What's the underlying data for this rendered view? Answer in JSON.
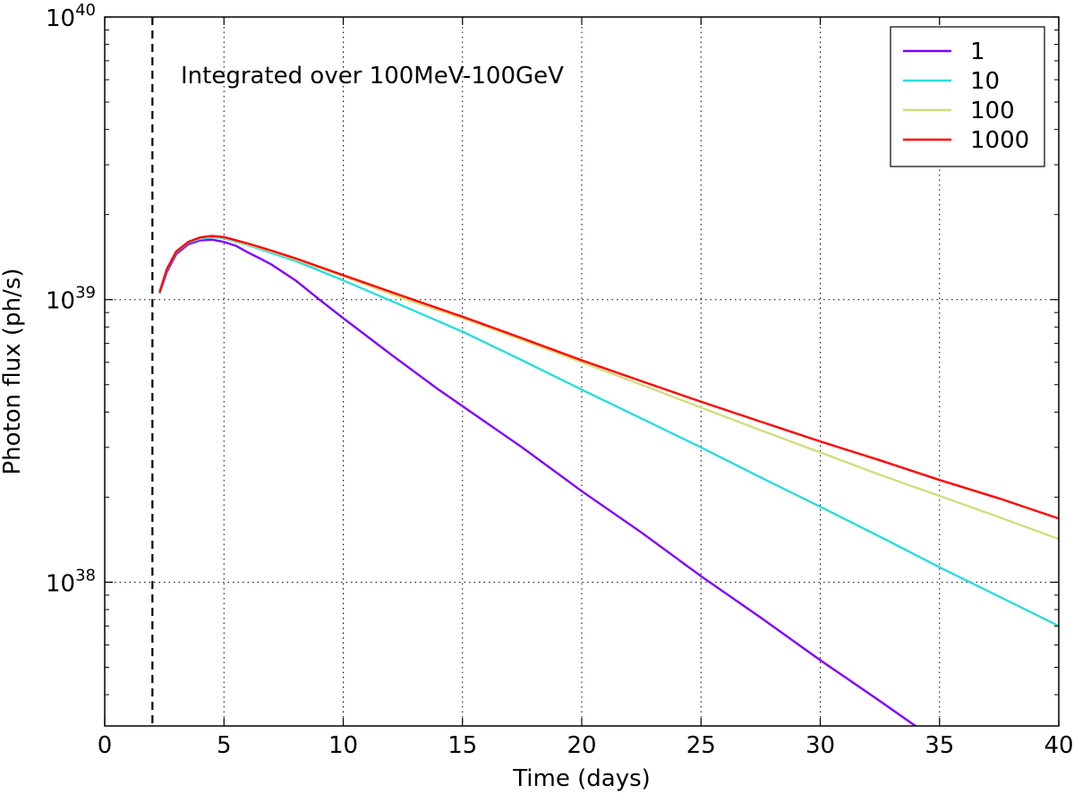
{
  "chart_data": {
    "type": "line",
    "xlabel": "Time (days)",
    "ylabel": "Photon flux (ph/s)",
    "annotation": "Integrated over 100MeV-100GeV",
    "y_scale": "log",
    "xlim": [
      0,
      40
    ],
    "ylim": [
      3.1e+37,
      1e+40
    ],
    "grid": true,
    "legend_position": "top-right",
    "x_ticks": [
      "0",
      "5",
      "10",
      "15",
      "20",
      "25",
      "30",
      "35",
      "40"
    ],
    "y_ticks": [
      {
        "base": "10",
        "exp": "38"
      },
      {
        "base": "10",
        "exp": "39"
      },
      {
        "base": "10",
        "exp": "40"
      }
    ],
    "vertical_marker": {
      "x": 2.0,
      "style": "dashed"
    },
    "series": [
      {
        "name": "1",
        "color": "#8000ff",
        "x": [
          2.3,
          2.6,
          3.0,
          3.5,
          4.0,
          4.5,
          5.0,
          5.5,
          6.0,
          6.5,
          7.0,
          8.0,
          9.0,
          10.0,
          12.0,
          14.0,
          15.0,
          17.5,
          20.0,
          22.5,
          25.0,
          27.5,
          30.0,
          32.5,
          35.0
        ],
        "y": [
          1.05e+39,
          1.25e+39,
          1.45e+39,
          1.57e+39,
          1.62e+39,
          1.63e+39,
          1.6e+39,
          1.55e+39,
          1.47e+39,
          1.4e+39,
          1.33e+39,
          1.17e+39,
          1e+39,
          8.6e+38,
          6.4e+38,
          4.8e+38,
          4.2e+38,
          3e+38,
          2.1e+38,
          1.5e+38,
          1.05e+38,
          7.5e+37,
          5.3e+37,
          3.8e+37,
          2.7e+37
        ]
      },
      {
        "name": "10",
        "color": "#2adddd",
        "x": [
          2.3,
          2.6,
          3.0,
          3.5,
          4.0,
          4.5,
          5.0,
          6.0,
          7.0,
          8.0,
          10.0,
          12.5,
          15.0,
          17.5,
          20.0,
          22.5,
          25.0,
          27.5,
          30.0,
          32.5,
          35.0,
          37.5,
          40.0
        ],
        "y": [
          1.05e+39,
          1.27e+39,
          1.47e+39,
          1.59e+39,
          1.64e+39,
          1.665e+39,
          1.65e+39,
          1.56e+39,
          1.46e+39,
          1.37e+39,
          1.17e+39,
          9.5e+38,
          7.7e+38,
          6.1e+38,
          4.8e+38,
          3.8e+38,
          3e+38,
          2.35e+38,
          1.85e+38,
          1.45e+38,
          1.13e+38,
          8.9e+37,
          7e+37
        ]
      },
      {
        "name": "100",
        "color": "#d4dc7f",
        "x": [
          2.3,
          2.6,
          3.0,
          3.5,
          4.0,
          4.5,
          5.0,
          6.0,
          7.0,
          8.0,
          10.0,
          12.5,
          15.0,
          17.5,
          20.0,
          22.5,
          25.0,
          27.5,
          30.0,
          32.5,
          35.0,
          37.5,
          40.0
        ],
        "y": [
          1.06e+39,
          1.28e+39,
          1.48e+39,
          1.6e+39,
          1.655e+39,
          1.675e+39,
          1.66e+39,
          1.57e+39,
          1.48e+39,
          1.39e+39,
          1.21e+39,
          1.01e+39,
          8.6e+38,
          7.2e+38,
          6e+38,
          5e+38,
          4.15e+38,
          3.45e+38,
          2.88e+38,
          2.4e+38,
          2.02e+38,
          1.7e+38,
          1.42e+38
        ]
      },
      {
        "name": "1000",
        "color": "#ff0000",
        "x": [
          2.3,
          2.6,
          3.0,
          3.5,
          4.0,
          4.5,
          5.0,
          6.0,
          7.0,
          8.0,
          10.0,
          12.5,
          15.0,
          17.5,
          20.0,
          22.5,
          25.0,
          27.5,
          30.0,
          32.5,
          35.0,
          37.5,
          40.0
        ],
        "y": [
          1.06e+39,
          1.28e+39,
          1.48e+39,
          1.6e+39,
          1.66e+39,
          1.68e+39,
          1.665e+39,
          1.58e+39,
          1.49e+39,
          1.4e+39,
          1.22e+39,
          1.03e+39,
          8.7e+38,
          7.3e+38,
          6.1e+38,
          5.15e+38,
          4.35e+38,
          3.7e+38,
          3.15e+38,
          2.7e+38,
          2.3e+38,
          1.98e+38,
          1.68e+38
        ]
      }
    ]
  }
}
